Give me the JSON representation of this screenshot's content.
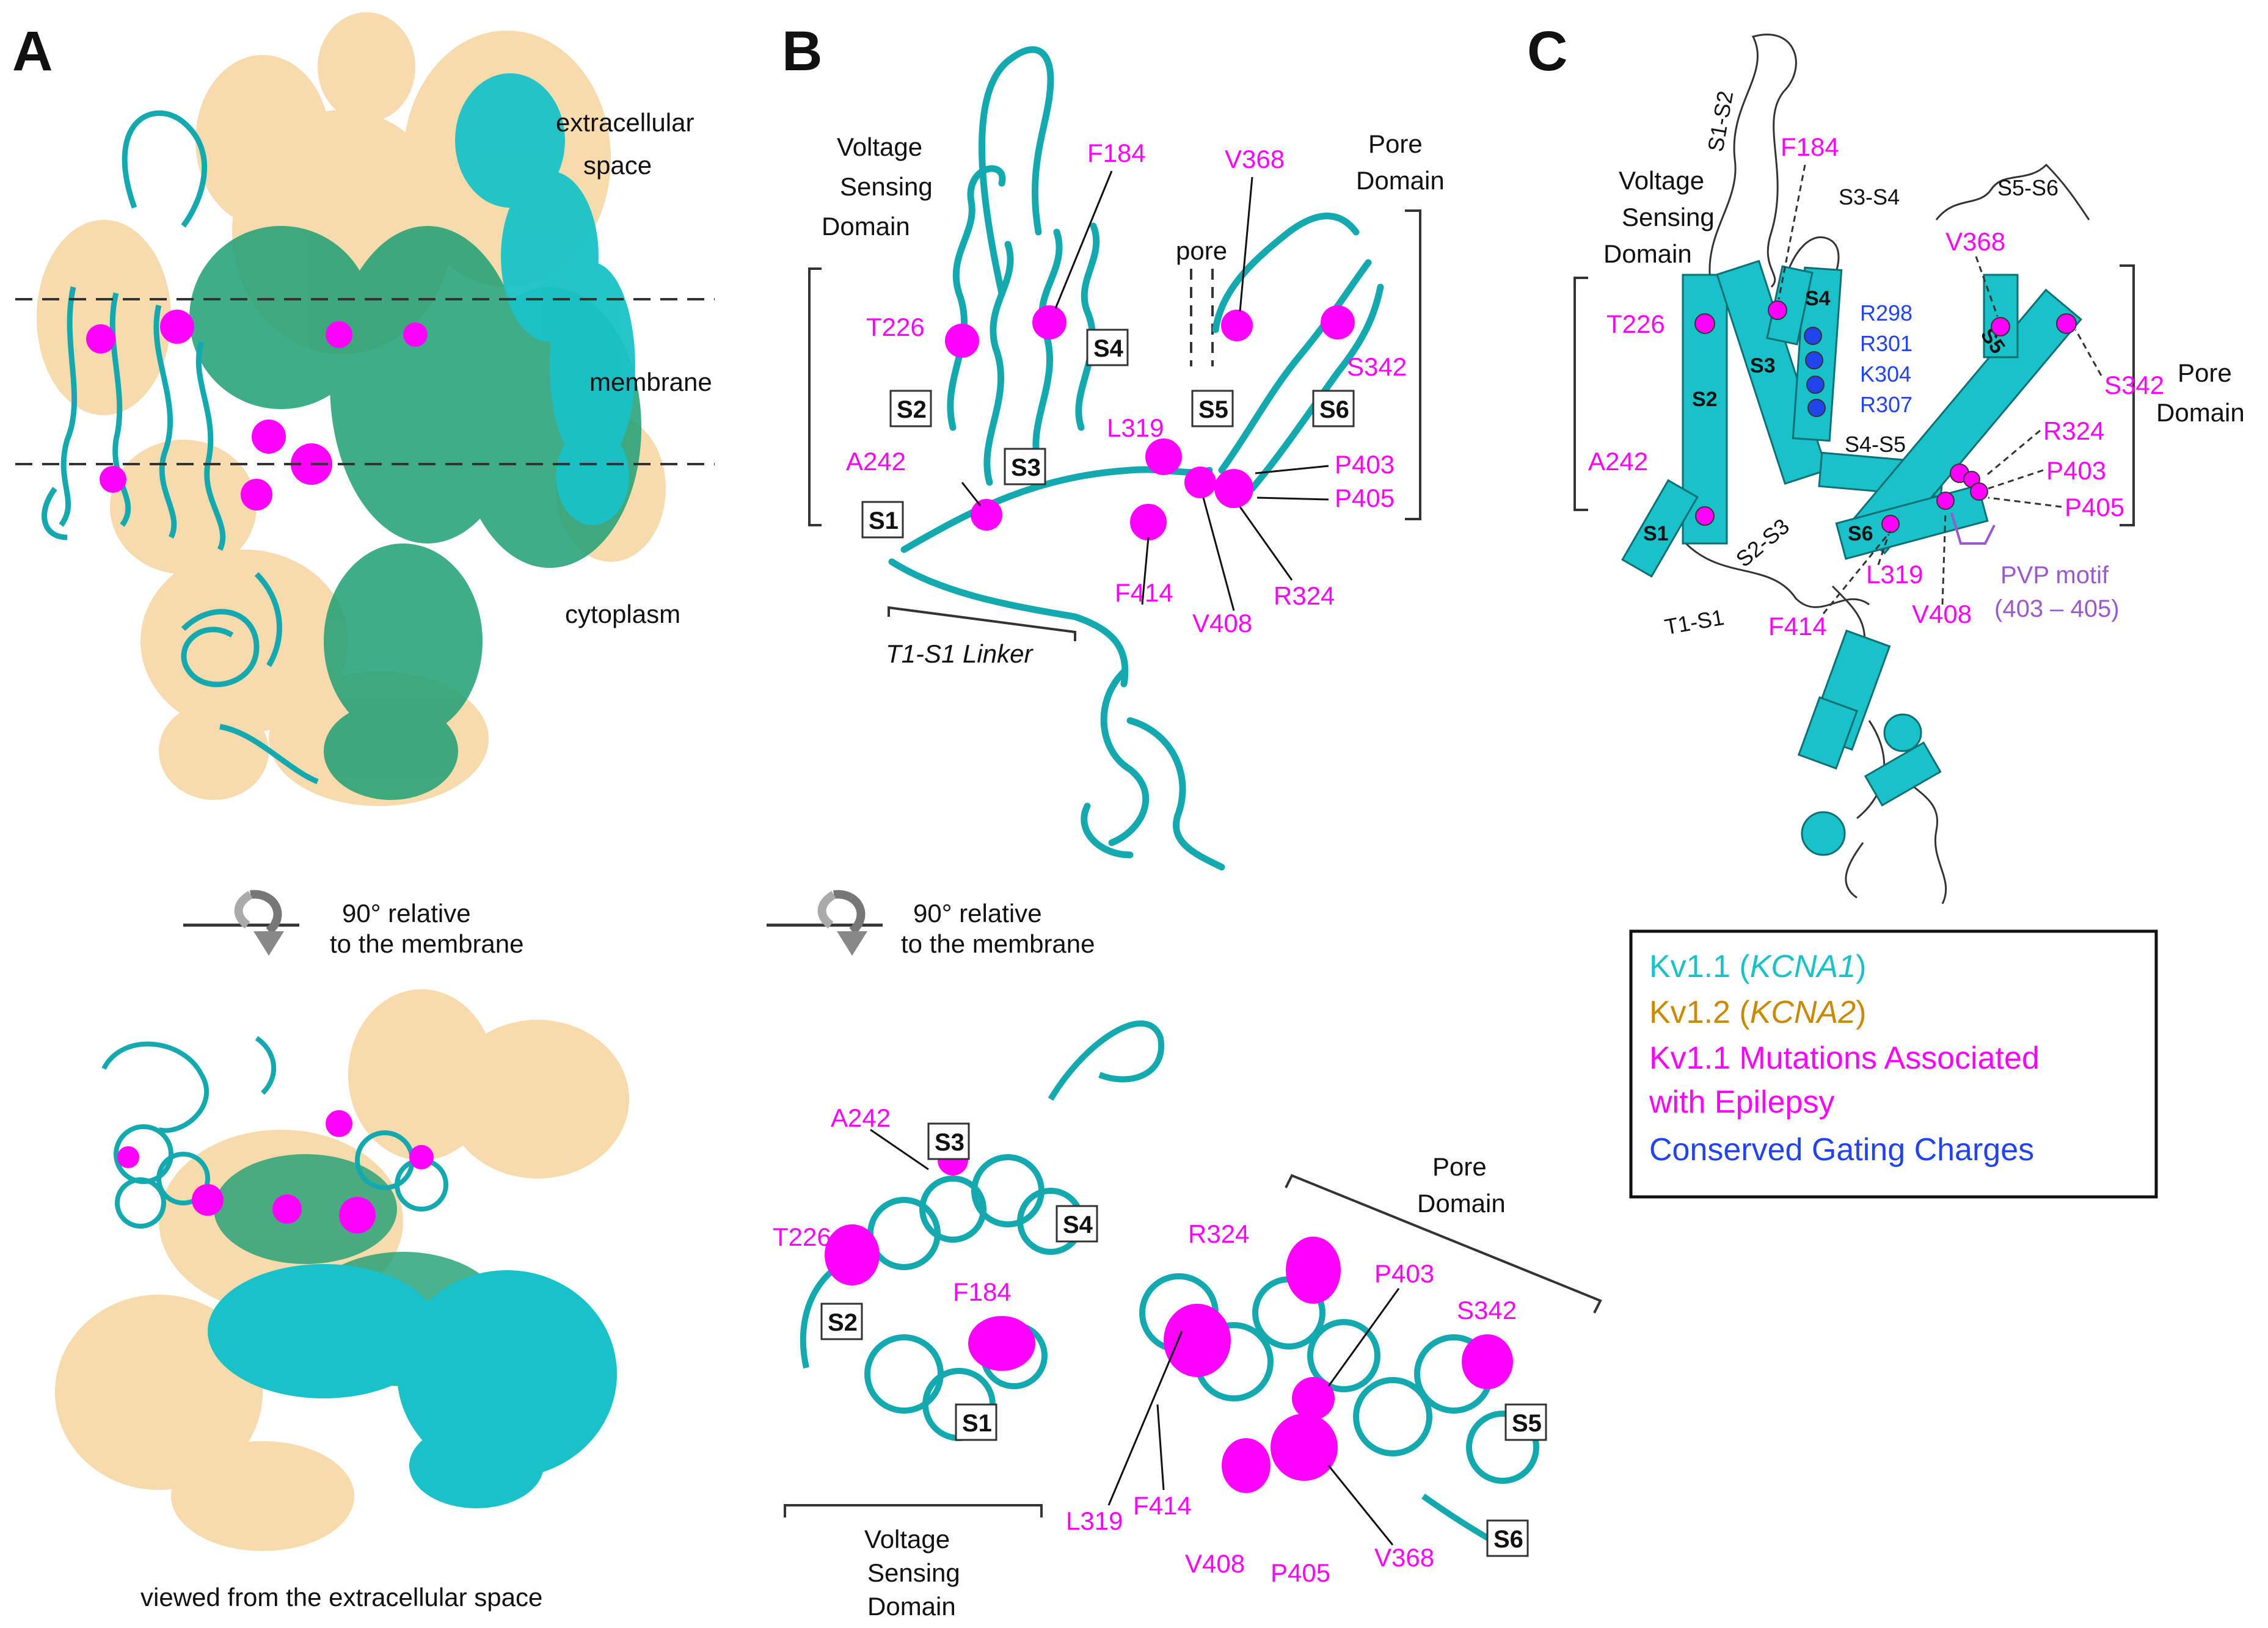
{
  "panels": {
    "a": {
      "letter": "A",
      "labels": {
        "extracellular_1": "extracellular",
        "extracellular_2": "space",
        "membrane": "membrane",
        "cytoplasm": "cytoplasm"
      },
      "rotation_1": "90° relative",
      "rotation_2": "to the membrane",
      "caption": "viewed from the extracellular space"
    },
    "b": {
      "letter": "B",
      "vsd": [
        "Voltage",
        "Sensing",
        "Domain"
      ],
      "pore_domain": [
        "Pore",
        "Domain"
      ],
      "pore": "pore",
      "linker": "T1-S1 Linker",
      "segments": [
        "S1",
        "S2",
        "S3",
        "S4",
        "S5",
        "S6"
      ],
      "mutations": [
        "F184",
        "T226",
        "A242",
        "L319",
        "F414",
        "V408",
        "R324",
        "P403",
        "P405",
        "V368",
        "S342"
      ],
      "rotation_1": "90° relative",
      "rotation_2": "to the membrane",
      "bottom": {
        "segments": [
          "S1",
          "S2",
          "S3",
          "S4",
          "S5",
          "S6"
        ],
        "mutations": [
          "A242",
          "T226",
          "F184",
          "R324",
          "P403",
          "S342",
          "L319",
          "F414",
          "V408",
          "P405",
          "V368"
        ],
        "pore_domain": [
          "Pore",
          "Domain"
        ],
        "vsd": [
          "Voltage",
          "Sensing",
          "Domain"
        ]
      }
    },
    "c": {
      "letter": "C",
      "vsd": [
        "Voltage",
        "Sensing",
        "Domain"
      ],
      "pore_domain": [
        "Pore",
        "Domain"
      ],
      "loops": [
        "S1-S2",
        "S3-S4",
        "S5-S6",
        "S4-S5",
        "S2-S3",
        "T1-S1"
      ],
      "segments": [
        "S1",
        "S2",
        "S3",
        "S4",
        "S5",
        "S6"
      ],
      "mutations": [
        "F184",
        "T226",
        "A242",
        "V368",
        "S342",
        "R324",
        "P403",
        "P405",
        "L319",
        "F414",
        "V408"
      ],
      "gating_charges": [
        "R298",
        "R301",
        "K304",
        "R307"
      ],
      "pvp_1": "PVP motif",
      "pvp_2": "(403 – 405)"
    }
  },
  "legend": {
    "line1_prefix": "Kv1.1 (",
    "line1_gene": "KCNA1",
    "line1_suffix": ")",
    "line2_prefix": "Kv1.2 (",
    "line2_gene": "KCNA2",
    "line2_suffix": ")",
    "line3": "Kv1.1 Mutations Associated",
    "line4": "with Epilepsy",
    "line5": "Conserved Gating Charges"
  },
  "colors": {
    "kv11": "#19c2c8",
    "kv11_dark": "#0e8f95",
    "kv12": "#f7d9a9",
    "green": "#1e9f74",
    "mutation": "#ff00ff",
    "gating": "#2244ee",
    "pvp": "#9b59d0",
    "legend_kv12": "#c98a00"
  }
}
